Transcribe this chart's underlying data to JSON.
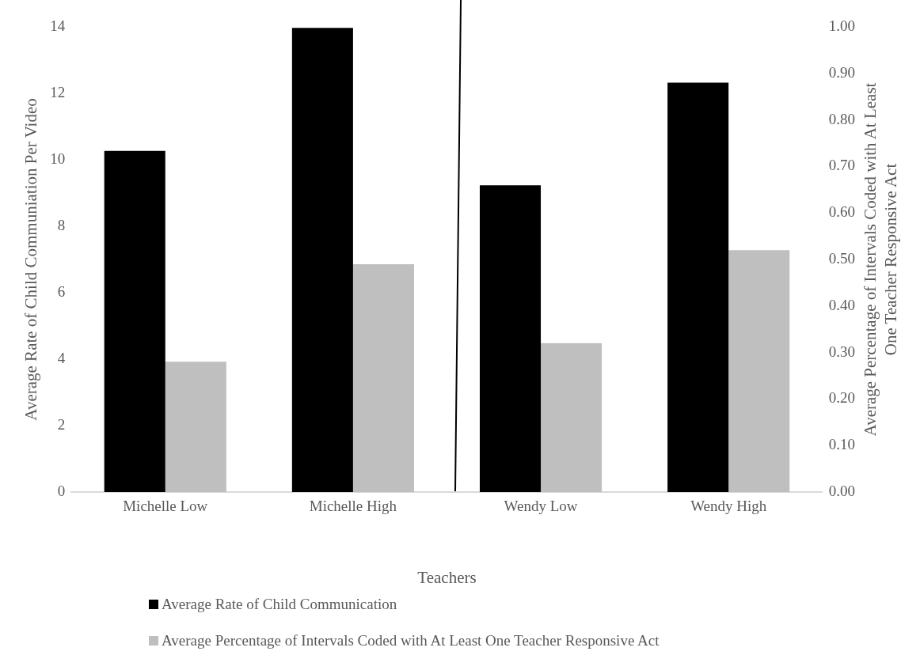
{
  "chart_data": {
    "type": "bar",
    "categories": [
      "Michelle Low",
      "Michelle High",
      "Wendy Low",
      "Wendy High"
    ],
    "series": [
      {
        "name": "Average Rate of Child Communication",
        "color": "#000000",
        "values": [
          10.27,
          13.97,
          9.23,
          12.32
        ]
      },
      {
        "name": "Average Percentage of Intervals Coded with At Least One Teacher Responsive Act",
        "color": "#bfbfbf",
        "values": [
          0.28,
          0.49,
          0.32,
          0.52
        ],
        "axis": "y2"
      }
    ],
    "xlabel": "Teachers",
    "ylabel": "Average Rate of Child Communiation Per Video",
    "y2label": "Average Percentage of Intervals Coded with At Least One Teacher Responsive Act",
    "ylim": [
      0,
      14
    ],
    "yticks": [
      0,
      2,
      4,
      6,
      8,
      10,
      12,
      14
    ],
    "y2lim": [
      0,
      1
    ],
    "y2ticks": [
      {
        "value": 0,
        "label": "0.00"
      },
      {
        "value": 0.1,
        "label": "0.10"
      },
      {
        "value": 0.2,
        "label": "0.20"
      },
      {
        "value": 0.3,
        "label": "0.30"
      },
      {
        "value": 0.4,
        "label": "0.40"
      },
      {
        "value": 0.5,
        "label": "0.50"
      },
      {
        "value": 0.6,
        "label": "0.60"
      },
      {
        "value": 0.7,
        "label": "0.70"
      },
      {
        "value": 0.8,
        "label": "0.80"
      },
      {
        "value": 0.9,
        "label": "0.90"
      },
      {
        "value": 1,
        "label": "1.00"
      }
    ],
    "grid": false,
    "legend": "bottom"
  }
}
